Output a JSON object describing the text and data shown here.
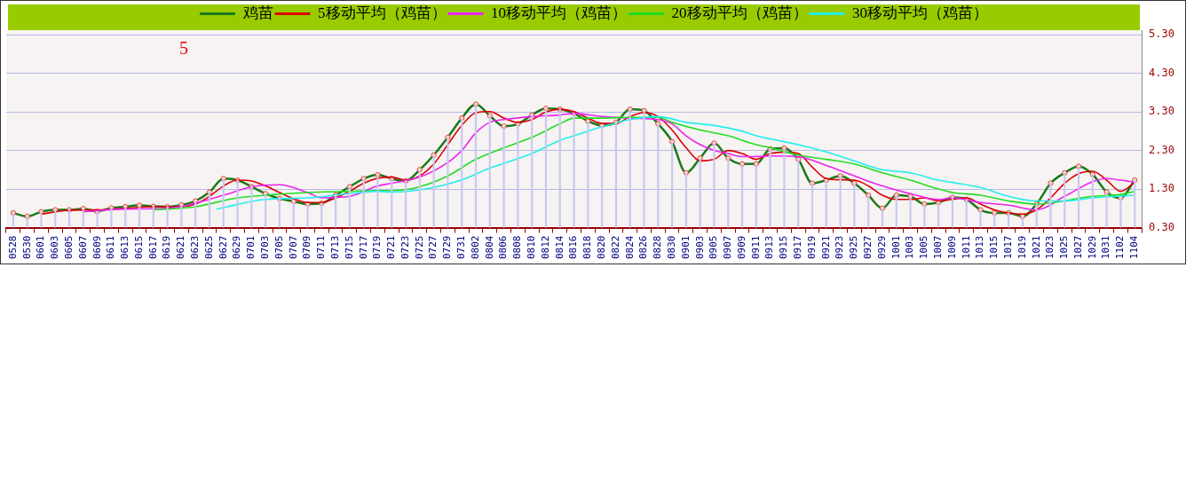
{
  "chart_data": {
    "type": "line",
    "annotations": [
      "5"
    ],
    "legend": "top",
    "grid": "y",
    "x": [
      "--05-28",
      "--05-30",
      "--06-01",
      "--06-03",
      "--06-05",
      "--06-07",
      "--06-09",
      "--06-11",
      "--06-13",
      "--06-15",
      "--06-17",
      "--06-19",
      "--06-21",
      "--06-23",
      "--06-25",
      "--06-27",
      "--06-29",
      "--07-01",
      "--07-03",
      "--07-05",
      "--07-07",
      "--07-09",
      "--07-11",
      "--07-13",
      "--07-15",
      "--07-17",
      "--07-19",
      "--07-21",
      "--07-23",
      "--07-25",
      "--07-27",
      "--07-29",
      "--07-31",
      "--08-02",
      "--08-04",
      "--08-06",
      "--08-08",
      "--08-10",
      "--08-12",
      "--08-14",
      "--08-16",
      "--08-18",
      "--08-20",
      "--08-22",
      "--08-24",
      "--08-26",
      "--08-28",
      "--08-30",
      "--09-01",
      "--09-03",
      "--09-05",
      "--09-07",
      "--09-09",
      "--09-11",
      "--09-13",
      "--09-15",
      "--09-17",
      "--09-19",
      "--09-21",
      "--09-23",
      "--09-25",
      "--09-27",
      "--09-29",
      "--10-01",
      "--10-03",
      "--10-05",
      "--10-07",
      "--10-09",
      "--10-11",
      "--10-13",
      "--10-15",
      "--10-17",
      "--10-19",
      "--10-21",
      "--10-23",
      "--10-25",
      "--10-27",
      "--10-29",
      "--10-31",
      "--11-02",
      "--11-04"
    ],
    "xlim": [
      "--05-28",
      "--11-04"
    ],
    "xticks": [
      {
        "value": "--05-28",
        "label": "0528"
      },
      {
        "value": "--05-30",
        "label": "0530"
      },
      {
        "value": "--06-01",
        "label": "0601"
      },
      {
        "value": "--06-03",
        "label": "0603"
      },
      {
        "value": "--06-05",
        "label": "0605"
      },
      {
        "value": "--06-07",
        "label": "0607"
      },
      {
        "value": "--06-09",
        "label": "0609"
      },
      {
        "value": "--06-11",
        "label": "0611"
      },
      {
        "value": "--06-13",
        "label": "0613"
      },
      {
        "value": "--06-15",
        "label": "0615"
      },
      {
        "value": "--06-17",
        "label": "0617"
      },
      {
        "value": "--06-19",
        "label": "0619"
      },
      {
        "value": "--06-21",
        "label": "0621"
      },
      {
        "value": "--06-23",
        "label": "0623"
      },
      {
        "value": "--06-25",
        "label": "0625"
      },
      {
        "value": "--06-27",
        "label": "0627"
      },
      {
        "value": "--06-29",
        "label": "0629"
      },
      {
        "value": "--07-01",
        "label": "0701"
      },
      {
        "value": "--07-03",
        "label": "0703"
      },
      {
        "value": "--07-05",
        "label": "0705"
      },
      {
        "value": "--07-07",
        "label": "0707"
      },
      {
        "value": "--07-09",
        "label": "0709"
      },
      {
        "value": "--07-11",
        "label": "0711"
      },
      {
        "value": "--07-13",
        "label": "0713"
      },
      {
        "value": "--07-15",
        "label": "0715"
      },
      {
        "value": "--07-17",
        "label": "0717"
      },
      {
        "value": "--07-19",
        "label": "0719"
      },
      {
        "value": "--07-21",
        "label": "0721"
      },
      {
        "value": "--07-23",
        "label": "0723"
      },
      {
        "value": "--07-25",
        "label": "0725"
      },
      {
        "value": "--07-27",
        "label": "0727"
      },
      {
        "value": "--07-29",
        "label": "0729"
      },
      {
        "value": "--07-31",
        "label": "0731"
      },
      {
        "value": "--08-02",
        "label": "0802"
      },
      {
        "value": "--08-04",
        "label": "0804"
      },
      {
        "value": "--08-06",
        "label": "0806"
      },
      {
        "value": "--08-08",
        "label": "0808"
      },
      {
        "value": "--08-10",
        "label": "0810"
      },
      {
        "value": "--08-12",
        "label": "0812"
      },
      {
        "value": "--08-14",
        "label": "0814"
      },
      {
        "value": "--08-16",
        "label": "0816"
      },
      {
        "value": "--08-18",
        "label": "0818"
      },
      {
        "value": "--08-20",
        "label": "0820"
      },
      {
        "value": "--08-22",
        "label": "0822"
      },
      {
        "value": "--08-24",
        "label": "0824"
      },
      {
        "value": "--08-26",
        "label": "0826"
      },
      {
        "value": "--08-28",
        "label": "0828"
      },
      {
        "value": "--08-30",
        "label": "0830"
      },
      {
        "value": "--09-01",
        "label": "0901"
      },
      {
        "value": "--09-03",
        "label": "0903"
      },
      {
        "value": "--09-05",
        "label": "0905"
      },
      {
        "value": "--09-07",
        "label": "0907"
      },
      {
        "value": "--09-09",
        "label": "0909"
      },
      {
        "value": "--09-11",
        "label": "0911"
      },
      {
        "value": "--09-13",
        "label": "0913"
      },
      {
        "value": "--09-15",
        "label": "0915"
      },
      {
        "value": "--09-17",
        "label": "0917"
      },
      {
        "value": "--09-19",
        "label": "0919"
      },
      {
        "value": "--09-21",
        "label": "0921"
      },
      {
        "value": "--09-23",
        "label": "0923"
      },
      {
        "value": "--09-25",
        "label": "0925"
      },
      {
        "value": "--09-27",
        "label": "0927"
      },
      {
        "value": "--09-29",
        "label": "0929"
      },
      {
        "value": "--10-01",
        "label": "1001"
      },
      {
        "value": "--10-03",
        "label": "1003"
      },
      {
        "value": "--10-05",
        "label": "1005"
      },
      {
        "value": "--10-07",
        "label": "1007"
      },
      {
        "value": "--10-09",
        "label": "1009"
      },
      {
        "value": "--10-11",
        "label": "1011"
      },
      {
        "value": "--10-13",
        "label": "1013"
      },
      {
        "value": "--10-15",
        "label": "1015"
      },
      {
        "value": "--10-17",
        "label": "1017"
      },
      {
        "value": "--10-19",
        "label": "1019"
      },
      {
        "value": "--10-21",
        "label": "1021"
      },
      {
        "value": "--10-23",
        "label": "1023"
      },
      {
        "value": "--10-25",
        "label": "1025"
      },
      {
        "value": "--10-27",
        "label": "1027"
      },
      {
        "value": "--10-29",
        "label": "1029"
      },
      {
        "value": "--10-31",
        "label": "1031"
      },
      {
        "value": "--11-02",
        "label": "1102"
      },
      {
        "value": "--11-04",
        "label": "1104"
      }
    ],
    "ylim": [
      0.3,
      5.42
    ],
    "yticks": [
      {
        "value": 0.3,
        "label": "0.30"
      },
      {
        "value": 1.3,
        "label": "1.30"
      },
      {
        "value": 2.3,
        "label": "2.30"
      },
      {
        "value": 3.3,
        "label": "3.30"
      },
      {
        "value": 4.3,
        "label": "4.30"
      },
      {
        "value": 5.3,
        "label": "5.30"
      }
    ],
    "series": [
      {
        "type": "bar",
        "color": "#c8c8f0",
        "values": [
          0.68,
          0.59,
          0.71,
          0.76,
          0.76,
          0.79,
          0.72,
          0.81,
          0.84,
          0.88,
          0.85,
          0.84,
          0.89,
          0.99,
          1.22,
          1.57,
          1.53,
          1.36,
          1.18,
          1.05,
          0.98,
          0.91,
          0.93,
          1.14,
          1.36,
          1.57,
          1.67,
          1.57,
          1.51,
          1.8,
          2.18,
          2.64,
          3.14,
          3.5,
          3.2,
          2.93,
          2.99,
          3.22,
          3.39,
          3.37,
          3.26,
          3.06,
          2.95,
          3.03,
          3.37,
          3.33,
          2.99,
          2.53,
          1.72,
          2.1,
          2.49,
          2.1,
          1.95,
          1.95,
          2.34,
          2.36,
          2.07,
          1.45,
          1.53,
          1.64,
          1.45,
          1.14,
          0.8,
          1.14,
          1.11,
          0.91,
          0.95,
          1.08,
          1.03,
          0.76,
          0.68,
          0.68,
          0.59,
          0.91,
          1.45,
          1.72,
          1.89,
          1.68,
          1.22,
          1.07,
          1.53
        ]
      },
      {
        "name": "鸡苗",
        "color": "#1a7a1a",
        "marker": "circle",
        "values": [
          0.68,
          0.59,
          0.71,
          0.76,
          0.76,
          0.79,
          0.72,
          0.81,
          0.84,
          0.88,
          0.85,
          0.84,
          0.89,
          0.99,
          1.22,
          1.57,
          1.53,
          1.36,
          1.18,
          1.05,
          0.98,
          0.91,
          0.93,
          1.14,
          1.36,
          1.57,
          1.67,
          1.57,
          1.51,
          1.8,
          2.18,
          2.64,
          3.14,
          3.5,
          3.2,
          2.93,
          2.99,
          3.22,
          3.39,
          3.37,
          3.26,
          3.06,
          2.95,
          3.03,
          3.37,
          3.33,
          2.99,
          2.53,
          1.72,
          2.1,
          2.49,
          2.1,
          1.95,
          1.95,
          2.34,
          2.36,
          2.07,
          1.45,
          1.53,
          1.64,
          1.45,
          1.14,
          0.8,
          1.14,
          1.11,
          0.91,
          0.95,
          1.08,
          1.03,
          0.76,
          0.68,
          0.68,
          0.59,
          0.91,
          1.45,
          1.72,
          1.89,
          1.68,
          1.22,
          1.07,
          1.53
        ]
      },
      {
        "name": "5移动平均（鸡苗）",
        "color": "#dd0000",
        "marker": "none",
        "x": [
          "--06-01",
          "--06-05",
          "--06-09",
          "--06-13",
          "--06-17",
          "--06-21",
          "--06-23",
          "--06-25",
          "--06-27",
          "--06-29",
          "--07-01",
          "--07-03",
          "--07-05",
          "--07-07",
          "--07-09",
          "--07-11",
          "--07-13",
          "--07-15",
          "--07-17",
          "--07-19",
          "--07-21",
          "--07-23",
          "--07-25",
          "--07-27",
          "--07-29",
          "--07-31",
          "--08-02",
          "--08-04",
          "--08-06",
          "--08-08",
          "--08-10",
          "--08-12",
          "--08-14",
          "--08-16",
          "--08-18",
          "--08-20",
          "--08-22",
          "--08-24",
          "--08-26",
          "--08-28",
          "--08-30",
          "--09-01",
          "--09-03",
          "--09-05",
          "--09-07",
          "--09-09",
          "--09-11",
          "--09-13",
          "--09-15",
          "--09-17",
          "--09-19",
          "--09-21",
          "--09-23",
          "--09-25",
          "--09-27",
          "--09-29",
          "--10-01",
          "--10-03",
          "--10-05",
          "--10-07",
          "--10-09",
          "--10-11",
          "--10-13",
          "--10-15",
          "--10-17",
          "--10-19",
          "--10-21",
          "--10-23",
          "--10-25",
          "--10-27",
          "--10-29",
          "--10-31",
          "--11-02",
          "--11-04"
        ],
        "values": [
          0.65,
          0.75,
          0.76,
          0.8,
          0.84,
          0.84,
          0.91,
          1.11,
          1.38,
          1.53,
          1.51,
          1.38,
          1.21,
          1.05,
          0.95,
          0.95,
          1.07,
          1.24,
          1.45,
          1.58,
          1.61,
          1.53,
          1.64,
          1.95,
          2.45,
          2.95,
          3.28,
          3.31,
          3.14,
          3.03,
          3.1,
          3.3,
          3.37,
          3.31,
          3.14,
          3.0,
          3.0,
          3.18,
          3.28,
          3.18,
          2.83,
          2.37,
          2.03,
          2.07,
          2.3,
          2.22,
          2.07,
          2.22,
          2.26,
          2.22,
          1.87,
          1.57,
          1.54,
          1.53,
          1.38,
          1.14,
          1.03,
          1.03,
          1.07,
          0.99,
          1.03,
          1.07,
          0.91,
          0.76,
          0.68,
          0.65,
          0.76,
          1.07,
          1.45,
          1.7,
          1.76,
          1.53,
          1.24,
          1.47
        ]
      },
      {
        "name": "10移动平均（鸡苗）",
        "color": "#ee22ee",
        "marker": "none",
        "x": [
          "--06-07",
          "--06-13",
          "--06-19",
          "--06-27",
          "--07-01",
          "--07-05",
          "--07-09",
          "--07-11",
          "--07-15",
          "--07-19",
          "--07-21",
          "--07-25",
          "--07-29",
          "--07-31",
          "--08-02",
          "--08-04",
          "--08-06",
          "--08-10",
          "--08-14",
          "--08-16",
          "--08-20",
          "--08-24",
          "--08-28",
          "--08-30",
          "--09-01",
          "--09-03",
          "--09-05",
          "--09-07",
          "--09-09",
          "--09-11",
          "--09-13",
          "--09-17",
          "--09-21",
          "--09-25",
          "--09-29",
          "--10-03",
          "--10-07",
          "--10-09",
          "--10-13",
          "--10-17",
          "--10-21",
          "--10-25",
          "--10-29",
          "--10-31",
          "--11-02",
          "--11-04"
        ],
        "values": [
          0.71,
          0.78,
          0.8,
          1.14,
          1.36,
          1.41,
          1.21,
          1.07,
          1.11,
          1.38,
          1.45,
          1.61,
          1.99,
          2.3,
          2.76,
          3.03,
          3.1,
          3.18,
          3.22,
          3.26,
          3.18,
          3.14,
          3.1,
          2.99,
          2.68,
          2.45,
          2.3,
          2.22,
          2.14,
          2.14,
          2.16,
          2.14,
          1.91,
          1.64,
          1.38,
          1.18,
          1.03,
          1.07,
          0.95,
          0.88,
          0.76,
          1.11,
          1.49,
          1.57,
          1.53,
          1.48
        ]
      },
      {
        "name": "20移动平均（鸡苗）",
        "color": "#22dd22",
        "marker": "none",
        "x": [
          "--06-17",
          "--06-21",
          "--06-23",
          "--06-29",
          "--07-03",
          "--07-09",
          "--07-15",
          "--07-19",
          "--07-21",
          "--07-25",
          "--07-29",
          "--08-02",
          "--08-06",
          "--08-10",
          "--08-14",
          "--08-16",
          "--08-20",
          "--08-24",
          "--08-28",
          "--08-30",
          "--09-03",
          "--09-07",
          "--09-11",
          "--09-13",
          "--09-17",
          "--09-21",
          "--09-25",
          "--09-29",
          "--10-03",
          "--10-07",
          "--10-09",
          "--10-13",
          "--10-17",
          "--10-21",
          "--10-29",
          "--11-02",
          "--11-04"
        ],
        "values": [
          0.76,
          0.8,
          0.84,
          1.07,
          1.14,
          1.21,
          1.24,
          1.26,
          1.26,
          1.36,
          1.64,
          2.07,
          2.37,
          2.64,
          2.99,
          3.14,
          3.14,
          3.16,
          3.16,
          3.03,
          2.83,
          2.68,
          2.45,
          2.37,
          2.18,
          2.07,
          1.95,
          1.72,
          1.53,
          1.3,
          1.21,
          1.14,
          0.99,
          0.91,
          1.11,
          1.16,
          1.24
        ]
      },
      {
        "name": "30移动平均（鸡苗）",
        "color": "#22eeee",
        "marker": "none",
        "x": [
          "--06-26",
          "--07-03",
          "--07-09",
          "--07-15",
          "--07-19",
          "--07-21",
          "--07-27",
          "--07-31",
          "--08-04",
          "--08-10",
          "--08-14",
          "--08-16",
          "--08-20",
          "--08-24",
          "--08-28",
          "--09-01",
          "--09-05",
          "--09-09",
          "--09-11",
          "--09-13",
          "--09-17",
          "--09-21",
          "--09-25",
          "--09-29",
          "--10-03",
          "--10-07",
          "--10-09",
          "--10-13",
          "--10-17",
          "--10-21",
          "--10-25",
          "--10-29",
          "--11-02",
          "--11-04"
        ],
        "values": [
          0.78,
          1.03,
          1.07,
          1.18,
          1.24,
          1.22,
          1.34,
          1.54,
          1.84,
          2.22,
          2.56,
          2.68,
          2.91,
          3.1,
          3.18,
          3.03,
          2.95,
          2.8,
          2.68,
          2.6,
          2.45,
          2.26,
          2.03,
          1.8,
          1.72,
          1.53,
          1.47,
          1.34,
          1.11,
          0.99,
          0.99,
          1.07,
          1.12,
          1.14
        ]
      }
    ]
  }
}
